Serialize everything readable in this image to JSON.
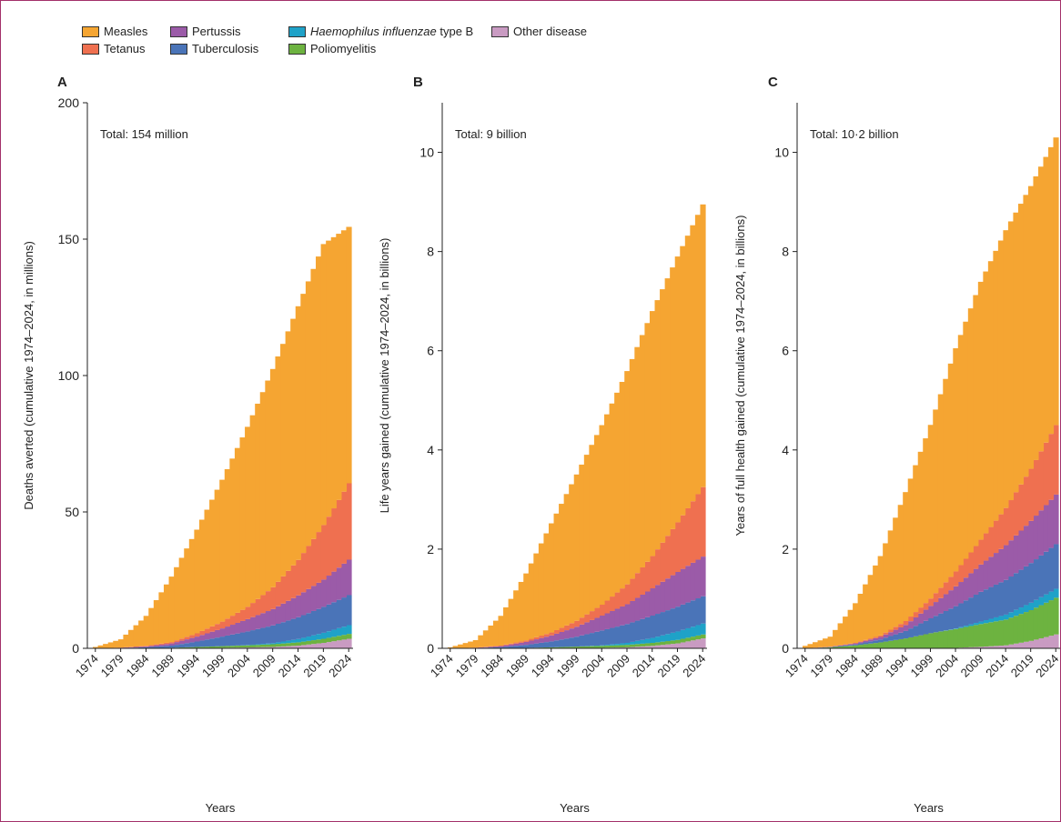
{
  "legend": [
    {
      "key": "measles",
      "label": "Measles",
      "color": "#f5a532"
    },
    {
      "key": "pertussis",
      "label": "Pertussis",
      "color": "#9b5ba8"
    },
    {
      "key": "hib",
      "label_em": "Haemophilus influenzae",
      "label_rest": " type B",
      "color": "#1fa2c8"
    },
    {
      "key": "other",
      "label": "Other disease",
      "color": "#c99bc2"
    },
    {
      "key": "tetanus",
      "label": "Tetanus",
      "color": "#ef7050"
    },
    {
      "key": "tb",
      "label": "Tuberculosis",
      "color": "#4a74b8"
    },
    {
      "key": "polio",
      "label": "Poliomyelitis",
      "color": "#6db340"
    }
  ],
  "chart_data": [
    {
      "panel": "A",
      "type": "area",
      "stacked": true,
      "total_label": "Total: 154 million",
      "xlabel": "Years",
      "ylabel": "Deaths averted (cumulative 1974–2024, in millions)",
      "xlim": [
        1974,
        2024
      ],
      "ylim": [
        0,
        200
      ],
      "yticks": [
        0,
        50,
        100,
        150,
        200
      ],
      "xticks": [
        1974,
        1979,
        1984,
        1989,
        1994,
        1999,
        2004,
        2009,
        2014,
        2019,
        2024
      ],
      "x": [
        1974,
        1979,
        1984,
        1989,
        1994,
        1999,
        2004,
        2009,
        2014,
        2019,
        2024
      ],
      "series": [
        {
          "name": "Other disease",
          "key": "other",
          "values": [
            0,
            0,
            0,
            0,
            0.1,
            0.2,
            0.3,
            0.5,
            1.0,
            2.0,
            3.5
          ]
        },
        {
          "name": "Poliomyelitis",
          "key": "polio",
          "values": [
            0,
            0,
            0.1,
            0.2,
            0.4,
            0.6,
            0.8,
            1.0,
            1.2,
            1.5,
            1.8
          ]
        },
        {
          "name": "Haemophilus influenzae type B",
          "key": "hib",
          "values": [
            0,
            0,
            0,
            0,
            0,
            0,
            0.1,
            0.4,
            1.2,
            2.2,
            3.2
          ]
        },
        {
          "name": "Tuberculosis",
          "key": "tb",
          "values": [
            0,
            0.1,
            0.3,
            0.8,
            2.0,
            3.5,
            5.0,
            6.5,
            8.0,
            9.5,
            11.0
          ]
        },
        {
          "name": "Pertussis",
          "key": "pertussis",
          "values": [
            0,
            0.1,
            0.3,
            0.8,
            1.8,
            3.0,
            4.5,
            6.0,
            8.0,
            10.0,
            13.0
          ]
        },
        {
          "name": "Tetanus",
          "key": "tetanus",
          "values": [
            0,
            0.1,
            0.2,
            0.5,
            1.2,
            2.5,
            4.5,
            8.0,
            13.0,
            20.0,
            28.0
          ]
        },
        {
          "name": "Measles",
          "key": "measles",
          "values": [
            0.5,
            3,
            11,
            24,
            38,
            52,
            66,
            80,
            93,
            103,
            94
          ]
        }
      ]
    },
    {
      "panel": "B",
      "type": "area",
      "stacked": true,
      "total_label": "Total: 9 billion",
      "xlabel": "Years",
      "ylabel": "Life years gained (cumulative 1974–2024, in billions)",
      "xlim": [
        1974,
        2024
      ],
      "ylim": [
        0,
        11
      ],
      "yticks": [
        0,
        2,
        4,
        6,
        8,
        10
      ],
      "xticks": [
        1974,
        1979,
        1984,
        1989,
        1994,
        1999,
        2004,
        2009,
        2014,
        2019,
        2024
      ],
      "x": [
        1974,
        1979,
        1984,
        1989,
        1994,
        1999,
        2004,
        2009,
        2014,
        2019,
        2024
      ],
      "series": [
        {
          "name": "Other disease",
          "key": "other",
          "values": [
            0,
            0,
            0,
            0,
            0,
            0.005,
            0.01,
            0.02,
            0.05,
            0.1,
            0.2
          ]
        },
        {
          "name": "Poliomyelitis",
          "key": "polio",
          "values": [
            0,
            0,
            0.005,
            0.01,
            0.02,
            0.03,
            0.04,
            0.05,
            0.06,
            0.07,
            0.08
          ]
        },
        {
          "name": "Haemophilus influenzae type B",
          "key": "hib",
          "values": [
            0,
            0,
            0,
            0,
            0,
            0,
            0.01,
            0.04,
            0.1,
            0.17,
            0.22
          ]
        },
        {
          "name": "Tuberculosis",
          "key": "tb",
          "values": [
            0,
            0.005,
            0.02,
            0.06,
            0.12,
            0.2,
            0.3,
            0.38,
            0.45,
            0.5,
            0.55
          ]
        },
        {
          "name": "Pertussis",
          "key": "pertussis",
          "values": [
            0,
            0.005,
            0.02,
            0.06,
            0.12,
            0.2,
            0.3,
            0.4,
            0.55,
            0.7,
            0.8
          ]
        },
        {
          "name": "Tetanus",
          "key": "tetanus",
          "values": [
            0,
            0.005,
            0.01,
            0.03,
            0.06,
            0.12,
            0.22,
            0.4,
            0.65,
            1.0,
            1.4
          ]
        },
        {
          "name": "Measles",
          "key": "measles",
          "values": [
            0.02,
            0.15,
            0.6,
            1.35,
            2.2,
            2.95,
            3.62,
            4.3,
            4.94,
            5.36,
            5.7
          ]
        }
      ]
    },
    {
      "panel": "C",
      "type": "area",
      "stacked": true,
      "total_label": "Total: 10·2 billion",
      "xlabel": "Years",
      "ylabel": "Years of full health gained (cumulative 1974–2024, in billions)",
      "xlim": [
        1974,
        2024
      ],
      "ylim": [
        0,
        11
      ],
      "yticks": [
        0,
        2,
        4,
        6,
        8,
        10
      ],
      "xticks": [
        1974,
        1979,
        1984,
        1989,
        1994,
        1999,
        2004,
        2009,
        2014,
        2019,
        2024
      ],
      "x": [
        1974,
        1979,
        1984,
        1989,
        1994,
        1999,
        2004,
        2009,
        2014,
        2019,
        2024
      ],
      "series": [
        {
          "name": "Other disease",
          "key": "other",
          "values": [
            0,
            0,
            0,
            0,
            0,
            0.005,
            0.01,
            0.03,
            0.06,
            0.15,
            0.28
          ]
        },
        {
          "name": "Poliomyelitis",
          "key": "polio",
          "values": [
            0,
            0.02,
            0.06,
            0.12,
            0.2,
            0.3,
            0.38,
            0.46,
            0.52,
            0.62,
            0.74
          ]
        },
        {
          "name": "Haemophilus influenzae type B",
          "key": "hib",
          "values": [
            0,
            0,
            0,
            0,
            0,
            0,
            0.01,
            0.05,
            0.1,
            0.15,
            0.18
          ]
        },
        {
          "name": "Tuberculosis",
          "key": "tb",
          "values": [
            0,
            0.005,
            0.02,
            0.06,
            0.15,
            0.3,
            0.45,
            0.6,
            0.7,
            0.8,
            0.9
          ]
        },
        {
          "name": "Pertussis",
          "key": "pertussis",
          "values": [
            0,
            0.005,
            0.02,
            0.05,
            0.12,
            0.25,
            0.4,
            0.55,
            0.7,
            0.85,
            1.0
          ]
        },
        {
          "name": "Tetanus",
          "key": "tetanus",
          "values": [
            0,
            0.005,
            0.01,
            0.03,
            0.08,
            0.15,
            0.3,
            0.5,
            0.75,
            1.05,
            1.4
          ]
        },
        {
          "name": "Measles",
          "key": "measles",
          "values": [
            0.05,
            0.2,
            0.8,
            1.6,
            2.6,
            3.5,
            4.5,
            5.2,
            5.6,
            5.7,
            5.8
          ]
        }
      ]
    }
  ]
}
